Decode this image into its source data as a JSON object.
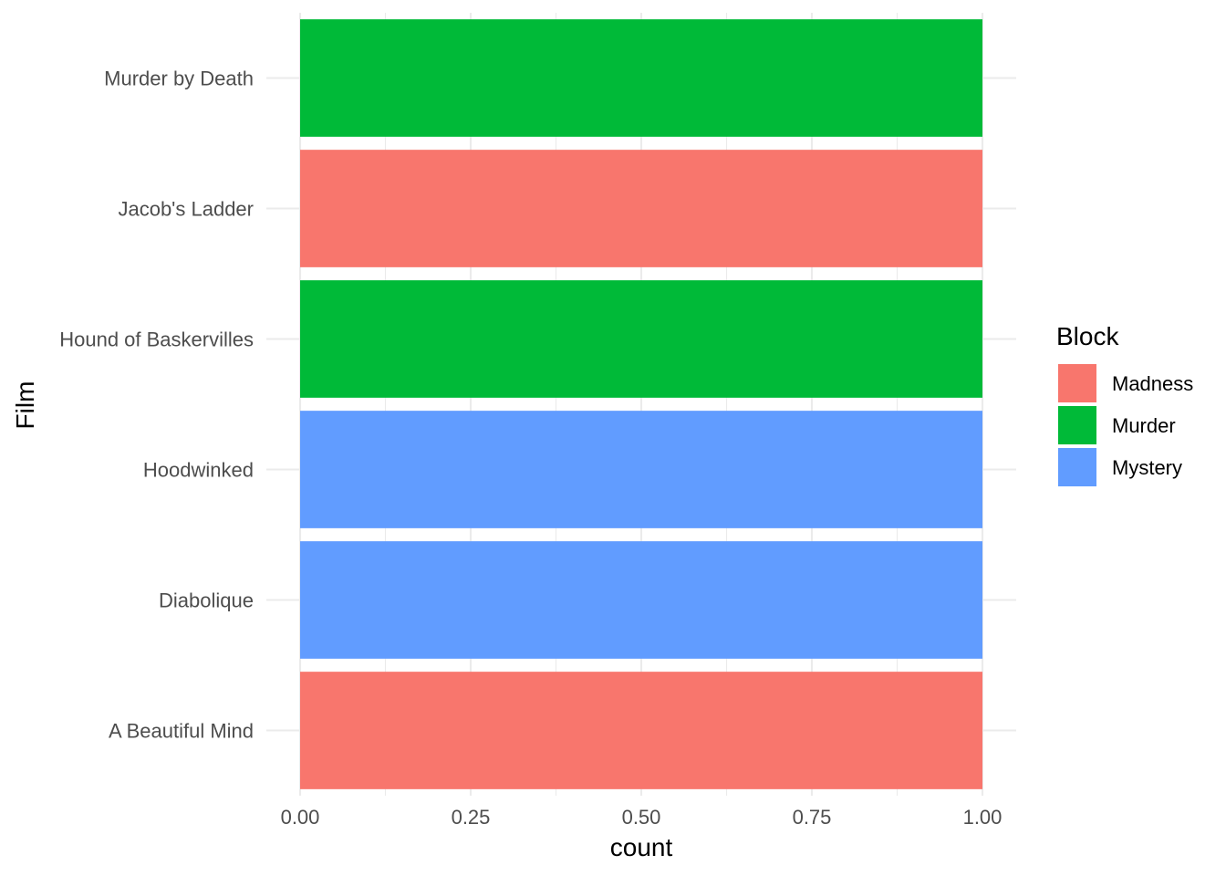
{
  "chart_data": {
    "type": "bar",
    "orientation": "horizontal",
    "categories": [
      "A Beautiful Mind",
      "Diabolique",
      "Hoodwinked",
      "Hound of Baskervilles",
      "Jacob's Ladder",
      "Murder by Death"
    ],
    "values": [
      1,
      1,
      1,
      1,
      1,
      1
    ],
    "bar_groups": [
      "Madness",
      "Mystery",
      "Mystery",
      "Murder",
      "Madness",
      "Murder"
    ],
    "xlabel": "count",
    "ylabel": "Film",
    "xlim": [
      0,
      1
    ],
    "x_ticks": [
      "0.00",
      "0.25",
      "0.50",
      "0.75",
      "1.00"
    ],
    "x_tick_values": [
      0,
      0.25,
      0.5,
      0.75,
      1
    ],
    "grid": true,
    "legend": {
      "title": "Block",
      "position": "right",
      "entries": [
        {
          "label": "Madness",
          "color": "#F8766D"
        },
        {
          "label": "Murder",
          "color": "#00BA38"
        },
        {
          "label": "Mystery",
          "color": "#619CFF"
        }
      ]
    }
  }
}
